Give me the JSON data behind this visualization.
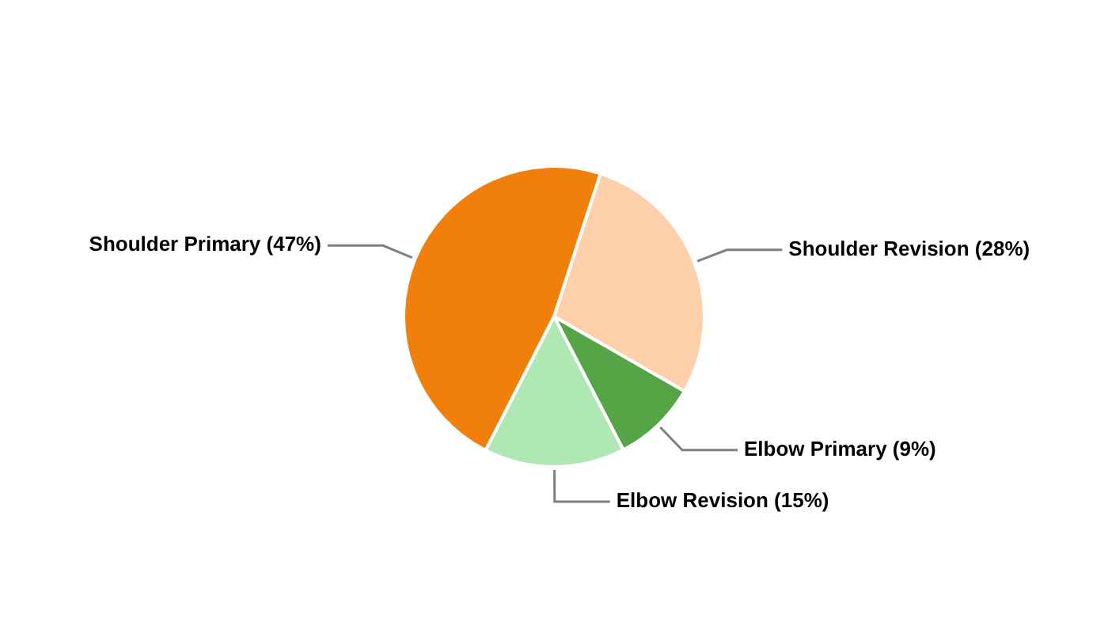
{
  "chart_data": {
    "type": "pie",
    "categories": [
      "Shoulder Revision",
      "Elbow Primary",
      "Elbow Revision",
      "Shoulder Primary"
    ],
    "values": [
      28,
      9,
      15,
      47
    ],
    "colors": [
      "#fdd0a9",
      "#55a546",
      "#b0e8b4",
      "#f07f0b"
    ],
    "value_labels": [
      "(28%)",
      "(9%)",
      "(15%)",
      "(47%)"
    ],
    "legend": false
  }
}
